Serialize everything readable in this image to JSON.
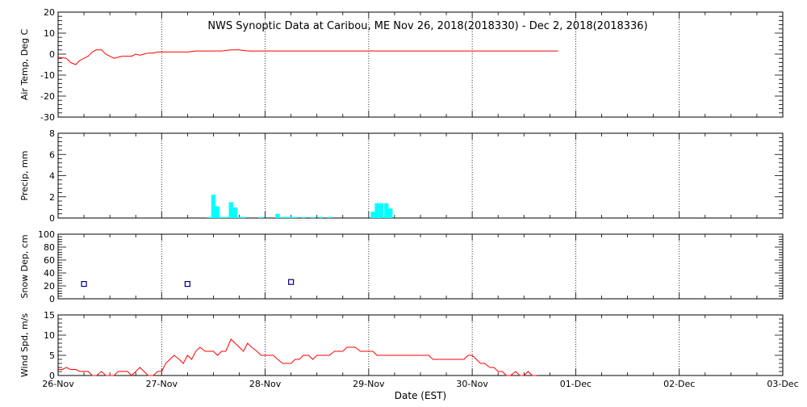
{
  "title": "NWS Synoptic Data at Caribou, ME   Nov 26, 2018(2018330) - Dec  2, 2018(2018336)",
  "colors": {
    "temp_line": "#ff0000",
    "precip_bar": "#00ffff",
    "snow_marker": "#000080",
    "wind_line": "#ff0000",
    "axis": "#000000"
  },
  "chart_data": [
    {
      "type": "line",
      "ylabel": "Air Temp, Deg C",
      "ylim": [
        -30,
        20
      ],
      "yticks": [
        -30,
        -20,
        -10,
        0,
        10,
        20
      ],
      "grid": true,
      "xlim": [
        0,
        7
      ],
      "series": [
        {
          "x": [
            0.0,
            0.08,
            0.12,
            0.17,
            0.21,
            0.25,
            0.29,
            0.33,
            0.37,
            0.42,
            0.46,
            0.5,
            0.54,
            0.58,
            0.62,
            0.67,
            0.71,
            0.75,
            0.79,
            0.83,
            0.87,
            0.92,
            0.96,
            1.0,
            1.04,
            1.08,
            1.12,
            1.17,
            1.25,
            1.33,
            1.42,
            1.5,
            1.58,
            1.67,
            1.75,
            1.83,
            1.92,
            2.0,
            2.08,
            2.17,
            2.25,
            2.33,
            2.42,
            2.5,
            2.58,
            2.67,
            2.75,
            2.83,
            2.92,
            3.0,
            3.08,
            3.17,
            3.25,
            3.33,
            3.42,
            3.5,
            3.58,
            3.67,
            3.75,
            3.83,
            3.92,
            4.0,
            4.08,
            4.17,
            4.25,
            4.33,
            4.42,
            4.5,
            4.58,
            4.67,
            4.75,
            4.83
          ],
          "y": [
            -1.5,
            -2,
            -4,
            -5,
            -3,
            -2,
            -1,
            1,
            2,
            2,
            0,
            -1,
            -2,
            -1.5,
            -1,
            -1,
            -1,
            0,
            -0.5,
            0,
            0.5,
            0.5,
            1,
            1,
            1,
            1,
            1,
            1,
            1,
            1.5,
            1.5,
            1.5,
            1.5,
            2,
            2,
            1.5,
            1.5,
            1.5,
            1.5,
            1.5,
            1.5,
            1.5,
            1.5,
            1.5,
            1.5,
            1.5,
            1.5,
            1.5,
            1.5,
            1.5,
            1.5,
            1.5,
            1.5,
            1.5,
            1.5,
            1.5,
            1.5,
            1.5,
            1.5,
            1.5,
            1.5,
            1.5,
            1.5,
            1.5,
            1.5,
            1.5,
            1.5,
            1.5,
            1.5,
            1.5,
            1.5,
            1.5
          ]
        }
      ]
    },
    {
      "type": "bar",
      "ylabel": "Precip, mm",
      "ylim": [
        0,
        8
      ],
      "yticks": [
        0,
        2,
        4,
        6,
        8
      ],
      "grid": true,
      "xlim": [
        0,
        7
      ],
      "series": [
        {
          "x": [
            1.46,
            1.5,
            1.54,
            1.58,
            1.62,
            1.67,
            1.71,
            1.75,
            1.79,
            1.96,
            2.12,
            2.17,
            2.21,
            2.25,
            2.29,
            2.37,
            2.46,
            2.54,
            2.62,
            3.04,
            3.08,
            3.12,
            3.17,
            3.21
          ],
          "y": [
            0.1,
            2.2,
            1.1,
            0.1,
            0.1,
            1.5,
            1.0,
            0.1,
            0.1,
            0.1,
            0.4,
            0.1,
            0.1,
            0.1,
            0.1,
            0.1,
            0.1,
            0.1,
            0.1,
            0.6,
            1.4,
            1.4,
            1.4,
            0.9
          ]
        }
      ]
    },
    {
      "type": "scatter",
      "ylabel": "Snow Dep, cm",
      "ylim": [
        0,
        100
      ],
      "yticks": [
        0,
        20,
        40,
        60,
        80,
        100
      ],
      "grid": true,
      "xlim": [
        0,
        7
      ],
      "series": [
        {
          "x": [
            0.25,
            1.25,
            2.25
          ],
          "y": [
            23,
            23,
            26
          ]
        }
      ]
    },
    {
      "type": "line",
      "ylabel": "Wind Spd, m/s",
      "xlabel": "Date (EST)",
      "ylim": [
        0,
        15
      ],
      "yticks": [
        0,
        5,
        10,
        15
      ],
      "grid": true,
      "xlim": [
        0,
        7
      ],
      "xticks": [
        "26-Nov",
        "27-Nov",
        "28-Nov",
        "29-Nov",
        "30-Nov",
        "01-Dec",
        "02-Dec",
        "03-Dec"
      ],
      "series": [
        {
          "x": [
            0.0,
            0.04,
            0.08,
            0.12,
            0.17,
            0.21,
            0.25,
            0.29,
            0.33,
            0.37,
            0.42,
            0.46,
            0.5,
            0.54,
            0.58,
            0.62,
            0.67,
            0.71,
            0.75,
            0.79,
            0.83,
            0.87,
            0.92,
            0.96,
            1.0,
            1.04,
            1.08,
            1.12,
            1.17,
            1.21,
            1.25,
            1.29,
            1.33,
            1.37,
            1.42,
            1.46,
            1.5,
            1.54,
            1.58,
            1.62,
            1.67,
            1.71,
            1.75,
            1.79,
            1.83,
            1.87,
            1.92,
            1.96,
            2.0,
            2.04,
            2.08,
            2.12,
            2.17,
            2.21,
            2.25,
            2.29,
            2.33,
            2.37,
            2.42,
            2.46,
            2.5,
            2.54,
            2.58,
            2.62,
            2.67,
            2.71,
            2.75,
            2.79,
            2.83,
            2.87,
            2.92,
            2.96,
            3.0,
            3.04,
            3.08,
            3.12,
            3.17,
            3.21,
            3.25,
            3.29,
            3.33,
            3.37,
            3.42,
            3.46,
            3.5,
            3.54,
            3.58,
            3.62,
            3.67,
            3.71,
            3.75,
            3.79,
            3.83,
            3.87,
            3.92,
            3.96,
            4.0,
            4.04,
            4.08,
            4.12,
            4.17,
            4.21,
            4.25,
            4.29,
            4.33,
            4.37,
            4.42,
            4.46,
            4.5,
            4.54,
            4.58,
            4.62
          ],
          "y": [
            1.5,
            1.5,
            2,
            1.5,
            1.5,
            1,
            1,
            1,
            0,
            0,
            1,
            0,
            0,
            0,
            1,
            1,
            1,
            0,
            1,
            2,
            1,
            0,
            0,
            1,
            1,
            3,
            4,
            5,
            4,
            3,
            5,
            4,
            6,
            7,
            6,
            6,
            6,
            5,
            6,
            6,
            9,
            8,
            7,
            6,
            8,
            7,
            6,
            5,
            5,
            5,
            5,
            4,
            3,
            3,
            3,
            4,
            4,
            5,
            5,
            4,
            5,
            5,
            5,
            5,
            6,
            6,
            6,
            7,
            7,
            7,
            6,
            6,
            6,
            6,
            5,
            5,
            5,
            5,
            5,
            5,
            5,
            5,
            5,
            5,
            5,
            5,
            5,
            4,
            4,
            4,
            4,
            4,
            4,
            4,
            4,
            5,
            5,
            4,
            3,
            3,
            2,
            2,
            1,
            1,
            0,
            0,
            1,
            0,
            0,
            1,
            0,
            0
          ]
        }
      ]
    }
  ]
}
